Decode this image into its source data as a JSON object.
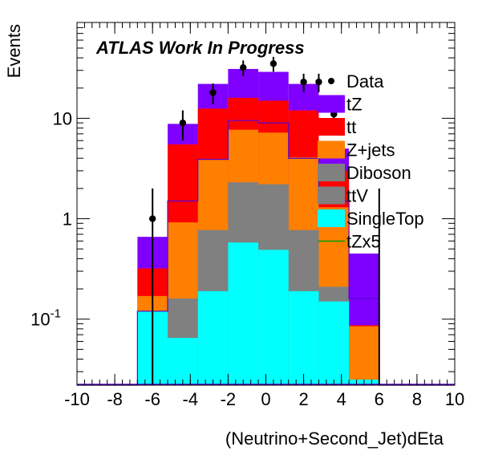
{
  "chart_data": {
    "type": "bar",
    "subtype": "stacked-histogram",
    "yscale": "log",
    "annotation": "ATLAS Work In Progress",
    "xlabel": "(Neutrino+Second_Jet)dEta",
    "ylabel": "Events",
    "xlim": [
      -10,
      10
    ],
    "ylim": [
      0.022,
      90
    ],
    "x_ticks": [
      "-10",
      "-8",
      "-6",
      "-4",
      "-2",
      "0",
      "2",
      "4",
      "6",
      "8",
      "10"
    ],
    "y_ticks": [
      {
        "base": "10",
        "exp": "-1",
        "value": 0.1
      },
      {
        "base": "1",
        "exp": "",
        "value": 1
      },
      {
        "base": "10",
        "exp": "",
        "value": 10
      }
    ],
    "legend_placement": "right",
    "bin_edges": [
      -10,
      -8.4,
      -6.8,
      -5.2,
      -3.6,
      -2.0,
      -0.4,
      1.2,
      2.8,
      4.4,
      6.0,
      7.6,
      10
    ],
    "stack": [
      {
        "name": "SingleTop",
        "color": "#00ffff",
        "values": [
          0,
          0,
          0.12,
          0.065,
          0.19,
          0.58,
          0.49,
          0.19,
          0.15,
          0.025,
          0,
          0
        ]
      },
      {
        "name": "ttV",
        "color": "#808080",
        "values": [
          0,
          0,
          0.12,
          0.16,
          0.77,
          2.3,
          2.2,
          0.77,
          0.21,
          0.025,
          0,
          0
        ]
      },
      {
        "name": "Diboson",
        "color": "#808080",
        "values": [
          0,
          0,
          0.12,
          0.16,
          0.77,
          2.3,
          2.2,
          0.77,
          0.21,
          0.025,
          0,
          0
        ]
      },
      {
        "name": "Z+jets",
        "color": "#ff7f00",
        "values": [
          0,
          0,
          0.17,
          0.92,
          3.9,
          7.7,
          7.2,
          4.1,
          1.3,
          0.085,
          0,
          0
        ]
      },
      {
        "name": "tt",
        "color": "#ff0000",
        "values": [
          0,
          0,
          0.32,
          5.5,
          12.5,
          16.0,
          15.0,
          12.0,
          3.0,
          0.087,
          0,
          0
        ]
      },
      {
        "name": "tZ",
        "color": "#7f00ff",
        "values": [
          0,
          0,
          0.66,
          8.8,
          22.0,
          31.0,
          29.0,
          22.0,
          5.0,
          0.45,
          0,
          0
        ]
      }
    ],
    "tZx5": {
      "name": "tZx5",
      "color": "#00a000",
      "values": [
        0,
        0,
        0.12,
        1.5,
        3.9,
        9.5,
        9.0,
        4.0,
        1.5,
        0.16,
        0,
        0
      ]
    },
    "data": {
      "name": "Data",
      "points": [
        {
          "x": -6.0,
          "y": 1.0,
          "lo": 0.001,
          "hi": 2.0
        },
        {
          "x": -4.4,
          "y": 9.0,
          "lo": 6.0,
          "hi": 12.0
        },
        {
          "x": -2.8,
          "y": 18.0,
          "lo": 13.8,
          "hi": 22.2
        },
        {
          "x": -1.2,
          "y": 32.0,
          "lo": 26.3,
          "hi": 37.7
        },
        {
          "x": 0.4,
          "y": 35.0,
          "lo": 29.1,
          "hi": 40.9
        },
        {
          "x": 2.0,
          "y": 23.0,
          "lo": 18.2,
          "hi": 27.8
        },
        {
          "x": 2.8,
          "y": 23.0,
          "lo": 18.2,
          "hi": 27.8
        },
        {
          "x": 3.6,
          "y": 11.0,
          "lo": 7.7,
          "hi": 14.3
        },
        {
          "x": 6.0,
          "y": 0.02,
          "lo": 0.001,
          "hi": 2.0
        }
      ]
    },
    "legend": [
      {
        "label": "Data",
        "kind": "marker",
        "color": "#000000"
      },
      {
        "label": "tZ",
        "kind": "box",
        "color": "#7f00ff"
      },
      {
        "label": "tt",
        "kind": "box",
        "color": "#ff0000"
      },
      {
        "label": "Z+jets",
        "kind": "box",
        "color": "#ff7f00"
      },
      {
        "label": "Diboson",
        "kind": "box",
        "color": "#808080"
      },
      {
        "label": "ttV",
        "kind": "box",
        "color": "#808080"
      },
      {
        "label": "SingleTop",
        "kind": "box",
        "color": "#00ffff"
      },
      {
        "label": "tZx5",
        "kind": "line",
        "color": "#00a000"
      }
    ]
  }
}
